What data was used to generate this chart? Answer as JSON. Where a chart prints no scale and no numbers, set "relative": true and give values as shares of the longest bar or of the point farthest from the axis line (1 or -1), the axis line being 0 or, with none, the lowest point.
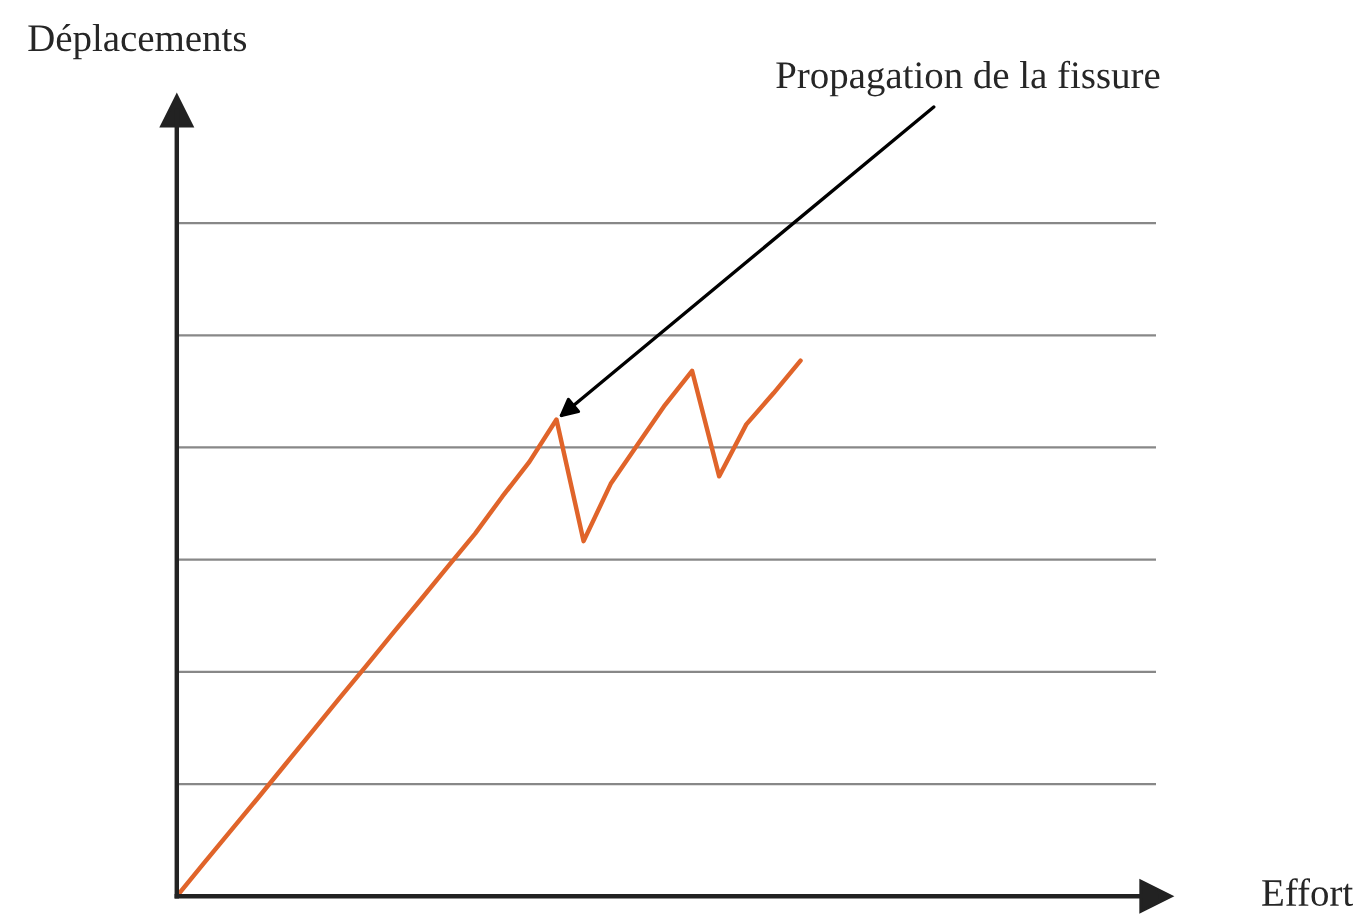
{
  "chart_data": {
    "type": "line",
    "relative": true,
    "categories": [
      null,
      null,
      null,
      null,
      null,
      null,
      null,
      null,
      null,
      null,
      null,
      null,
      null,
      null,
      null,
      null,
      null,
      null,
      null,
      null,
      null,
      null,
      null,
      null
    ],
    "series": [
      {
        "color": "#e0642a",
        "values": [
          0,
          0.062,
          0.123,
          0.184,
          0.246,
          0.308,
          0.37,
          0.431,
          0.493,
          0.554,
          0.616,
          0.677,
          0.746,
          0.811,
          0.89,
          0.663,
          0.77,
          0.844,
          0.917,
          0.981,
          0.784,
          0.881,
          0.939,
          1
        ]
      }
    ],
    "annotations": [
      "Déplacements",
      "Propagation de la fissure",
      "Effort"
    ],
    "grid": "y",
    "legend": false,
    "marker": "none",
    "line_style": "solid"
  }
}
